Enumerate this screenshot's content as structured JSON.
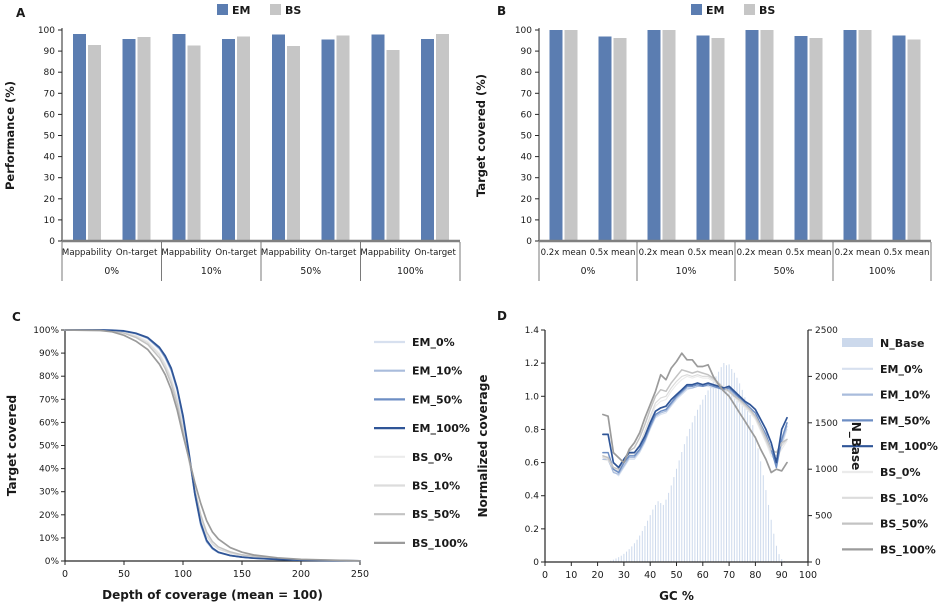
{
  "colors": {
    "em_blue": "#5b7db1",
    "bs_gray": "#c6c6c6",
    "n_base_fill": "#ccd9ec",
    "axis_line": "#262626",
    "baseline_gray": "#808080"
  },
  "chart_data": [
    {
      "id": "A",
      "type": "bar",
      "panel_label": "A",
      "ylabel": "Performance (%)",
      "ylim": [
        0,
        100
      ],
      "ytick_step": 10,
      "groups": [
        "0%",
        "10%",
        "50%",
        "100%"
      ],
      "subcategories": [
        "Mappability",
        "On-target"
      ],
      "legend_position": "top",
      "series": [
        {
          "name": "EM",
          "color": "#5b7db1",
          "values": [
            98.0,
            95.7,
            98.1,
            95.7,
            97.9,
            95.6,
            97.9,
            95.7
          ]
        },
        {
          "name": "BS",
          "color": "#c6c6c6",
          "values": [
            92.9,
            96.8,
            92.7,
            96.9,
            92.3,
            97.3,
            90.6,
            98.1
          ]
        }
      ]
    },
    {
      "id": "B",
      "type": "bar",
      "panel_label": "B",
      "ylabel": "Target covered (%)",
      "ylim": [
        0,
        100
      ],
      "ytick_step": 10,
      "groups": [
        "0%",
        "10%",
        "50%",
        "100%"
      ],
      "subcategories": [
        "0.2x mean",
        "0.5x mean"
      ],
      "legend_position": "top",
      "series": [
        {
          "name": "EM",
          "color": "#5b7db1",
          "values": [
            100,
            97.0,
            100,
            97.3,
            100,
            97.2,
            100,
            97.4
          ]
        },
        {
          "name": "BS",
          "color": "#c6c6c6",
          "values": [
            100,
            96.3,
            100,
            96.3,
            100,
            96.2,
            100,
            95.5
          ]
        }
      ]
    },
    {
      "id": "C",
      "type": "line",
      "panel_label": "C",
      "xlabel": "Depth of coverage (mean = 100)",
      "ylabel": "Target covered",
      "xlim": [
        0,
        250
      ],
      "xticks": [
        0,
        50,
        100,
        150,
        200,
        250
      ],
      "ylim": [
        0,
        100
      ],
      "ytick_step": 10,
      "ytick_format": "percent",
      "legend_position": "right",
      "x": [
        0,
        30,
        40,
        50,
        60,
        70,
        80,
        85,
        90,
        95,
        100,
        105,
        110,
        115,
        120,
        125,
        130,
        140,
        150,
        160,
        180,
        200,
        250
      ],
      "series": [
        {
          "name": "EM_0%",
          "color": "#d7e0ef",
          "width": 1.1,
          "values": [
            100,
            100,
            99.9,
            99.4,
            98.3,
            96.2,
            91.5,
            87.5,
            82,
            73.5,
            61,
            45,
            28,
            15,
            8,
            5,
            3.5,
            2.2,
            1.6,
            1.2,
            0.7,
            0.3,
            0.1
          ]
        },
        {
          "name": "EM_10%",
          "color": "#a9bcdc",
          "width": 1.2,
          "values": [
            100,
            100,
            99.9,
            99.5,
            98.4,
            96.4,
            91.8,
            87.8,
            82.5,
            74,
            61.5,
            45.5,
            28.5,
            15.5,
            8.3,
            5.2,
            3.6,
            2.3,
            1.6,
            1.2,
            0.7,
            0.3,
            0.1
          ]
        },
        {
          "name": "EM_50%",
          "color": "#6d8ec4",
          "width": 1.5,
          "values": [
            100,
            100,
            99.9,
            99.5,
            98.5,
            96.6,
            92.2,
            88.3,
            83,
            74.5,
            62,
            46,
            29,
            16,
            8.6,
            5.4,
            3.7,
            2.4,
            1.7,
            1.2,
            0.7,
            0.3,
            0.1
          ]
        },
        {
          "name": "EM_100%",
          "color": "#2f5597",
          "width": 1.7,
          "values": [
            100,
            100,
            99.9,
            99.6,
            98.6,
            96.8,
            92.5,
            88.8,
            83.5,
            75,
            63,
            47,
            29.5,
            16.5,
            9,
            5.6,
            3.8,
            2.4,
            1.7,
            1.2,
            0.7,
            0.3,
            0.1
          ]
        },
        {
          "name": "BS_0%",
          "color": "#ebebeb",
          "width": 1.1,
          "values": [
            100,
            100,
            99.8,
            99.1,
            97.7,
            95.2,
            90,
            85.5,
            79.5,
            71,
            59,
            45,
            30,
            18,
            10.5,
            7,
            5,
            3.3,
            2.3,
            1.7,
            1,
            0.5,
            0.1
          ]
        },
        {
          "name": "BS_10%",
          "color": "#dcdcdc",
          "width": 1.2,
          "values": [
            100,
            100,
            99.7,
            98.9,
            97.3,
            94.6,
            89.2,
            84.6,
            78.5,
            70,
            58,
            44.5,
            30.5,
            18.5,
            11,
            7.4,
            5.3,
            3.5,
            2.4,
            1.8,
            1,
            0.5,
            0.1
          ]
        },
        {
          "name": "BS_50%",
          "color": "#c3c3c3",
          "width": 1.5,
          "values": [
            100,
            100,
            99.6,
            98.6,
            96.8,
            93.8,
            88,
            83.2,
            76.8,
            68,
            56,
            43.8,
            31,
            20,
            12.5,
            8.4,
            6.1,
            4,
            2.7,
            2,
            1.1,
            0.6,
            0.1
          ]
        },
        {
          "name": "BS_100%",
          "color": "#9b9b9b",
          "width": 1.7,
          "values": [
            100,
            99.8,
            99.2,
            97.7,
            95.2,
            91.6,
            85.2,
            80.6,
            74.2,
            65.5,
            54.5,
            44.5,
            34,
            25,
            17.5,
            12.5,
            9.5,
            5.8,
            3.8,
            2.6,
            1.4,
            0.7,
            0.1
          ]
        }
      ]
    },
    {
      "id": "D",
      "type": "line+histogram",
      "panel_label": "D",
      "xlabel": "GC %",
      "ylabel": "Normalized coverage",
      "y2label": "N_Base",
      "xlim": [
        0,
        100
      ],
      "xticks": [
        0,
        10,
        20,
        30,
        40,
        50,
        60,
        70,
        80,
        90,
        100
      ],
      "ylim": [
        0,
        1.4
      ],
      "yticks": [
        0,
        0.2,
        0.4,
        0.6,
        0.8,
        1.0,
        1.2,
        1.4
      ],
      "y2lim": [
        0,
        2500
      ],
      "y2ticks": [
        0,
        500,
        1000,
        1500,
        2000,
        2500
      ],
      "legend_position": "right",
      "histogram": {
        "name": "N_Base",
        "color": "#ccd9ec",
        "axis": "y2",
        "x_start": 24,
        "x_step": 1,
        "values": [
          8,
          15,
          25,
          38,
          52,
          68,
          88,
          112,
          138,
          168,
          202,
          240,
          285,
          335,
          388,
          445,
          505,
          565,
          615,
          655,
          635,
          615,
          672,
          745,
          825,
          915,
          1005,
          1095,
          1185,
          1270,
          1355,
          1435,
          1505,
          1575,
          1640,
          1695,
          1750,
          1800,
          1850,
          1900,
          1950,
          2000,
          2050,
          2100,
          2145,
          2120,
          2130,
          2080,
          2040,
          1985,
          1925,
          1855,
          1775,
          1685,
          1585,
          1475,
          1355,
          1225,
          1085,
          935,
          775,
          615,
          455,
          305,
          175,
          85,
          32,
          10
        ]
      },
      "x": [
        22,
        24,
        26,
        28,
        30,
        32,
        34,
        36,
        38,
        40,
        42,
        44,
        46,
        48,
        50,
        52,
        54,
        56,
        58,
        60,
        62,
        64,
        66,
        68,
        70,
        72,
        74,
        76,
        78,
        80,
        82,
        84,
        86,
        88,
        90,
        92
      ],
      "series": [
        {
          "name": "EM_0%",
          "color": "#d7e0ef",
          "width": 1.1,
          "values": [
            0.64,
            0.63,
            0.55,
            0.52,
            0.57,
            0.62,
            0.62,
            0.66,
            0.72,
            0.8,
            0.87,
            0.89,
            0.9,
            0.94,
            0.98,
            1.01,
            1.04,
            1.05,
            1.06,
            1.06,
            1.06,
            1.05,
            1.05,
            1.03,
            1.04,
            1.0,
            0.97,
            0.94,
            0.91,
            0.87,
            0.8,
            0.73,
            0.64,
            0.61,
            0.7,
            0.8
          ]
        },
        {
          "name": "EM_10%",
          "color": "#a9bcdc",
          "width": 1.2,
          "values": [
            0.62,
            0.62,
            0.54,
            0.53,
            0.58,
            0.63,
            0.63,
            0.67,
            0.73,
            0.81,
            0.88,
            0.9,
            0.91,
            0.95,
            0.99,
            1.02,
            1.05,
            1.05,
            1.06,
            1.06,
            1.07,
            1.06,
            1.05,
            1.04,
            1.04,
            1.01,
            0.98,
            0.95,
            0.92,
            0.88,
            0.81,
            0.74,
            0.66,
            0.62,
            0.72,
            0.82
          ]
        },
        {
          "name": "EM_50%",
          "color": "#6d8ec4",
          "width": 1.5,
          "values": [
            0.66,
            0.66,
            0.56,
            0.54,
            0.6,
            0.64,
            0.64,
            0.68,
            0.74,
            0.82,
            0.89,
            0.91,
            0.92,
            0.96,
            1.0,
            1.03,
            1.06,
            1.06,
            1.07,
            1.06,
            1.07,
            1.06,
            1.05,
            1.04,
            1.05,
            1.02,
            0.99,
            0.96,
            0.93,
            0.9,
            0.83,
            0.77,
            0.68,
            0.57,
            0.74,
            0.84
          ]
        },
        {
          "name": "EM_100%",
          "color": "#2f5597",
          "width": 1.7,
          "values": [
            0.77,
            0.77,
            0.6,
            0.57,
            0.62,
            0.66,
            0.66,
            0.7,
            0.76,
            0.84,
            0.91,
            0.93,
            0.94,
            0.98,
            1.01,
            1.04,
            1.07,
            1.07,
            1.08,
            1.07,
            1.08,
            1.07,
            1.06,
            1.05,
            1.06,
            1.03,
            1.0,
            0.97,
            0.95,
            0.92,
            0.86,
            0.8,
            0.72,
            0.6,
            0.8,
            0.87
          ]
        },
        {
          "name": "BS_0%",
          "color": "#ebebeb",
          "width": 1.1,
          "values": [
            0.62,
            0.61,
            0.55,
            0.54,
            0.59,
            0.64,
            0.65,
            0.7,
            0.77,
            0.86,
            0.94,
            0.97,
            0.98,
            1.03,
            1.07,
            1.1,
            1.12,
            1.11,
            1.12,
            1.11,
            1.11,
            1.09,
            1.06,
            1.04,
            1.03,
            0.99,
            0.96,
            0.93,
            0.9,
            0.86,
            0.79,
            0.72,
            0.64,
            0.62,
            0.68,
            0.73
          ]
        },
        {
          "name": "BS_10%",
          "color": "#dcdcdc",
          "width": 1.2,
          "values": [
            0.63,
            0.62,
            0.56,
            0.55,
            0.6,
            0.65,
            0.66,
            0.71,
            0.79,
            0.88,
            0.96,
            0.99,
            1.0,
            1.05,
            1.09,
            1.12,
            1.13,
            1.12,
            1.13,
            1.12,
            1.12,
            1.1,
            1.07,
            1.04,
            1.03,
            1.0,
            0.97,
            0.94,
            0.91,
            0.87,
            0.8,
            0.73,
            0.66,
            0.64,
            0.7,
            0.74
          ]
        },
        {
          "name": "BS_50%",
          "color": "#c3c3c3",
          "width": 1.5,
          "values": [
            0.64,
            0.63,
            0.57,
            0.56,
            0.62,
            0.67,
            0.69,
            0.75,
            0.83,
            0.92,
            1.0,
            1.04,
            1.03,
            1.08,
            1.12,
            1.16,
            1.15,
            1.14,
            1.15,
            1.14,
            1.13,
            1.11,
            1.08,
            1.05,
            1.03,
            1.0,
            0.98,
            0.95,
            0.92,
            0.88,
            0.82,
            0.75,
            0.68,
            0.66,
            0.72,
            0.74
          ]
        },
        {
          "name": "BS_100%",
          "color": "#9b9b9b",
          "width": 1.7,
          "values": [
            0.89,
            0.88,
            0.66,
            0.63,
            0.6,
            0.68,
            0.72,
            0.78,
            0.87,
            0.95,
            1.03,
            1.13,
            1.1,
            1.17,
            1.21,
            1.26,
            1.22,
            1.22,
            1.18,
            1.18,
            1.19,
            1.12,
            1.07,
            1.03,
            1.0,
            0.95,
            0.9,
            0.85,
            0.8,
            0.75,
            0.68,
            0.62,
            0.54,
            0.56,
            0.55,
            0.6
          ]
        }
      ]
    }
  ]
}
